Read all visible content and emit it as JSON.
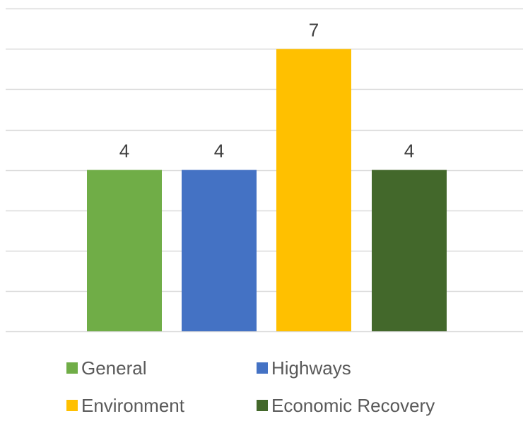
{
  "chart_data": {
    "type": "bar",
    "title": "",
    "xlabel": "",
    "ylabel": "",
    "ylim": [
      0,
      8
    ],
    "gridline_step": 1,
    "grid": true,
    "axis_tick_labels_shown": false,
    "legend_position": "bottom",
    "series": [
      {
        "name": "General",
        "value": 4,
        "color": "#70AD47"
      },
      {
        "name": "Highways",
        "value": 4,
        "color": "#4472C4"
      },
      {
        "name": "Environment",
        "value": 7,
        "color": "#FFC000"
      },
      {
        "name": "Economic Recovery",
        "value": 4,
        "color": "#43682B"
      }
    ],
    "data_labels_shown": true
  }
}
